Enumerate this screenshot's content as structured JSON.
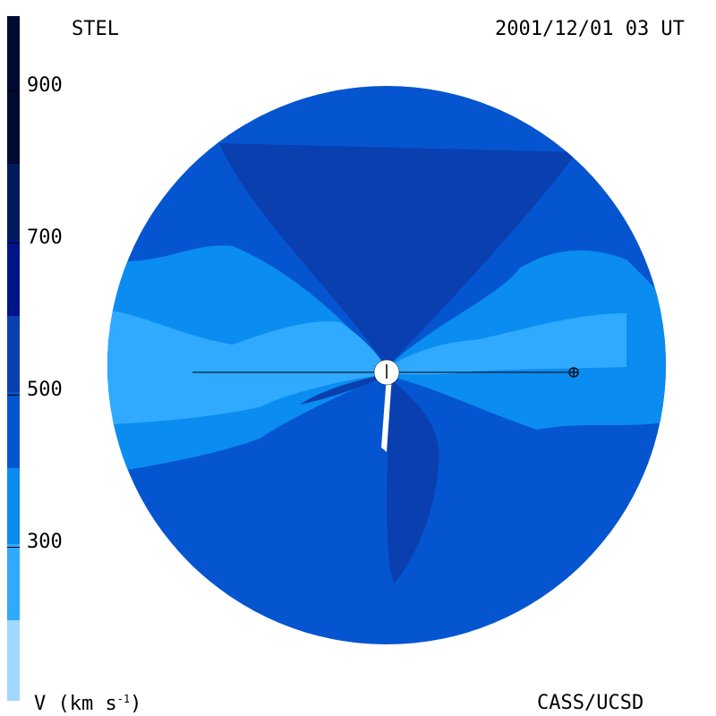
{
  "header": {
    "source": "STEL",
    "timestamp": "2001/12/01 03 UT"
  },
  "footer": {
    "unit_label_base": "V (km s",
    "unit_label_exp": "-1",
    "unit_label_close": ")",
    "credit": "CASS/UCSD"
  },
  "colorbar": {
    "ticks": [
      "900",
      "700",
      "500",
      "300"
    ],
    "levels": [
      {
        "color": "#000a33"
      },
      {
        "color": "#001a5c"
      },
      {
        "color": "#00148a"
      },
      {
        "color": "#0a3fb0"
      },
      {
        "color": "#0555d0"
      },
      {
        "color": "#0a8cf0"
      },
      {
        "color": "#30aaff"
      },
      {
        "color": "#a0d8ff"
      }
    ]
  },
  "map": {
    "fills": {
      "background_disk": "#0555d0",
      "north_lobe": "#0a3fb0",
      "equatorial_band": "#0a8cf0",
      "slow_wind_core": "#30aaff",
      "fast_stream_south": "#0a3fb0",
      "sun_disk": "#ffffff"
    },
    "markers": {
      "sun": "sun-marker",
      "earth": "earth-marker"
    }
  }
}
